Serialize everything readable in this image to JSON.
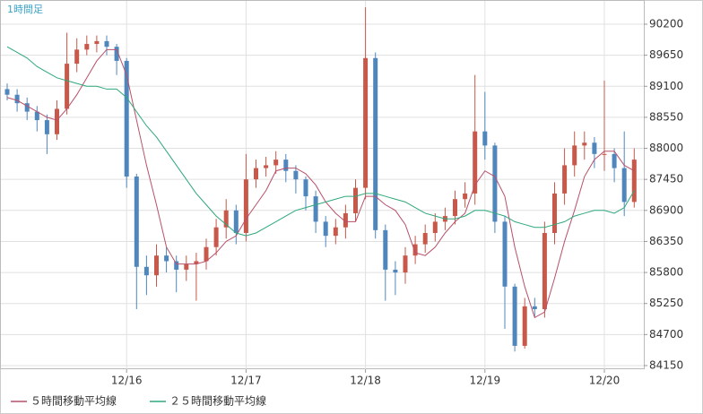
{
  "chart_data": {
    "type": "candlestick",
    "label": "1時間足",
    "categories": [
      null,
      null,
      null,
      null,
      null,
      null,
      null,
      null,
      null,
      null,
      null,
      null,
      "12/16",
      null,
      null,
      null,
      null,
      null,
      null,
      null,
      null,
      null,
      null,
      null,
      "12/17",
      null,
      null,
      null,
      null,
      null,
      null,
      null,
      null,
      null,
      null,
      null,
      "12/18",
      null,
      null,
      null,
      null,
      null,
      null,
      null,
      null,
      null,
      null,
      null,
      "12/19",
      null,
      null,
      null,
      null,
      null,
      null,
      null,
      null,
      null,
      null,
      null,
      "12/20",
      null,
      null,
      null
    ],
    "open": [
      89050,
      88950,
      88800,
      88650,
      88500,
      88250,
      88700,
      89500,
      89750,
      89850,
      89900,
      89800,
      89550,
      87500,
      85900,
      85750,
      86100,
      86000,
      85850,
      85950,
      86000,
      86250,
      86600,
      86900,
      86500,
      87450,
      87650,
      87700,
      87800,
      87600,
      87450,
      87150,
      86700,
      86450,
      86600,
      86850,
      87300,
      89600,
      86550,
      85850,
      85800,
      86100,
      86300,
      86500,
      86700,
      86800,
      87100,
      87200,
      88300,
      88050,
      86700,
      85550,
      84500,
      85200,
      85150,
      86500,
      87200,
      87700,
      88050,
      88100,
      87900,
      87900,
      87650,
      87050
    ],
    "high": [
      89150,
      89050,
      88900,
      88750,
      88600,
      88850,
      90050,
      89950,
      90000,
      90000,
      90000,
      89850,
      89600,
      87550,
      86100,
      86300,
      86250,
      86100,
      86100,
      86150,
      86400,
      86750,
      87100,
      87000,
      87900,
      87800,
      87850,
      87950,
      87900,
      87700,
      87500,
      87250,
      86800,
      86750,
      87000,
      87450,
      90500,
      89700,
      86650,
      86000,
      86250,
      86450,
      86650,
      86850,
      86950,
      87250,
      87400,
      89300,
      89000,
      88100,
      86800,
      85600,
      85350,
      85350,
      86700,
      87400,
      88000,
      88300,
      88300,
      88200,
      89200,
      88000,
      88300,
      88000
    ],
    "low": [
      88850,
      88650,
      88500,
      88300,
      87900,
      88150,
      88600,
      89350,
      89650,
      89700,
      89650,
      89300,
      87300,
      85150,
      85400,
      85550,
      85800,
      85450,
      85650,
      85300,
      85850,
      86100,
      86400,
      86300,
      86350,
      87300,
      87500,
      87550,
      87400,
      87200,
      86900,
      86500,
      86250,
      86300,
      86400,
      86700,
      87100,
      86400,
      85300,
      85400,
      85600,
      85950,
      86150,
      86350,
      86550,
      86650,
      86950,
      87000,
      87800,
      86500,
      84800,
      84400,
      84450,
      85000,
      85000,
      86300,
      87000,
      87500,
      87800,
      87650,
      87600,
      87400,
      86800,
      86950
    ],
    "close": [
      88950,
      88800,
      88650,
      88500,
      88250,
      88700,
      89500,
      89750,
      89850,
      89900,
      89800,
      89550,
      87500,
      85900,
      85750,
      86100,
      86000,
      85850,
      85950,
      86000,
      86250,
      86600,
      86900,
      86500,
      87450,
      87650,
      87700,
      87800,
      87600,
      87450,
      87150,
      86700,
      86450,
      86600,
      86850,
      87300,
      89600,
      86550,
      85850,
      85800,
      86100,
      86300,
      86500,
      86700,
      86800,
      87100,
      87200,
      88300,
      88050,
      86700,
      85550,
      84500,
      85200,
      85150,
      86500,
      87200,
      87700,
      88050,
      88100,
      87900,
      87900,
      87650,
      87050,
      87800
    ],
    "up_color": "#c8584a",
    "down_color": "#4f87bd",
    "series": [
      {
        "name": "５時間移動平均線",
        "color": "#b8506a",
        "values": [
          88900,
          88850,
          88750,
          88650,
          88550,
          88500,
          88700,
          88950,
          89250,
          89550,
          89750,
          89750,
          89300,
          88500,
          87700,
          87000,
          86250,
          85950,
          85950,
          85950,
          86000,
          86150,
          86350,
          86450,
          86750,
          87000,
          87250,
          87600,
          87650,
          87650,
          87550,
          87350,
          87050,
          86850,
          86700,
          86700,
          87150,
          87150,
          87000,
          86900,
          86650,
          86150,
          86100,
          86250,
          86500,
          86700,
          86850,
          87350,
          87600,
          87500,
          87150,
          86250,
          85550,
          85000,
          85100,
          85700,
          86350,
          86900,
          87500,
          87800,
          87950,
          87950,
          87700,
          87600
        ]
      },
      {
        "name": "２５時間移動平均線",
        "color": "#2ea87a",
        "values": [
          89800,
          89700,
          89600,
          89450,
          89350,
          89250,
          89200,
          89150,
          89100,
          89100,
          89050,
          89050,
          88900,
          88650,
          88400,
          88200,
          87950,
          87700,
          87450,
          87200,
          87000,
          86800,
          86650,
          86500,
          86450,
          86500,
          86600,
          86700,
          86800,
          86900,
          86950,
          87000,
          87050,
          87100,
          87150,
          87150,
          87200,
          87200,
          87150,
          87100,
          87050,
          86950,
          86850,
          86800,
          86750,
          86750,
          86800,
          86900,
          86900,
          86850,
          86800,
          86700,
          86650,
          86600,
          86600,
          86650,
          86700,
          86800,
          86850,
          86900,
          86900,
          86850,
          86950,
          87250
        ]
      }
    ],
    "ylim": [
      84086,
      90629
    ],
    "yticks": [
      84150,
      84700,
      85250,
      85800,
      86350,
      86900,
      87450,
      88000,
      88550,
      89100,
      89650,
      90200
    ],
    "grid": true
  }
}
